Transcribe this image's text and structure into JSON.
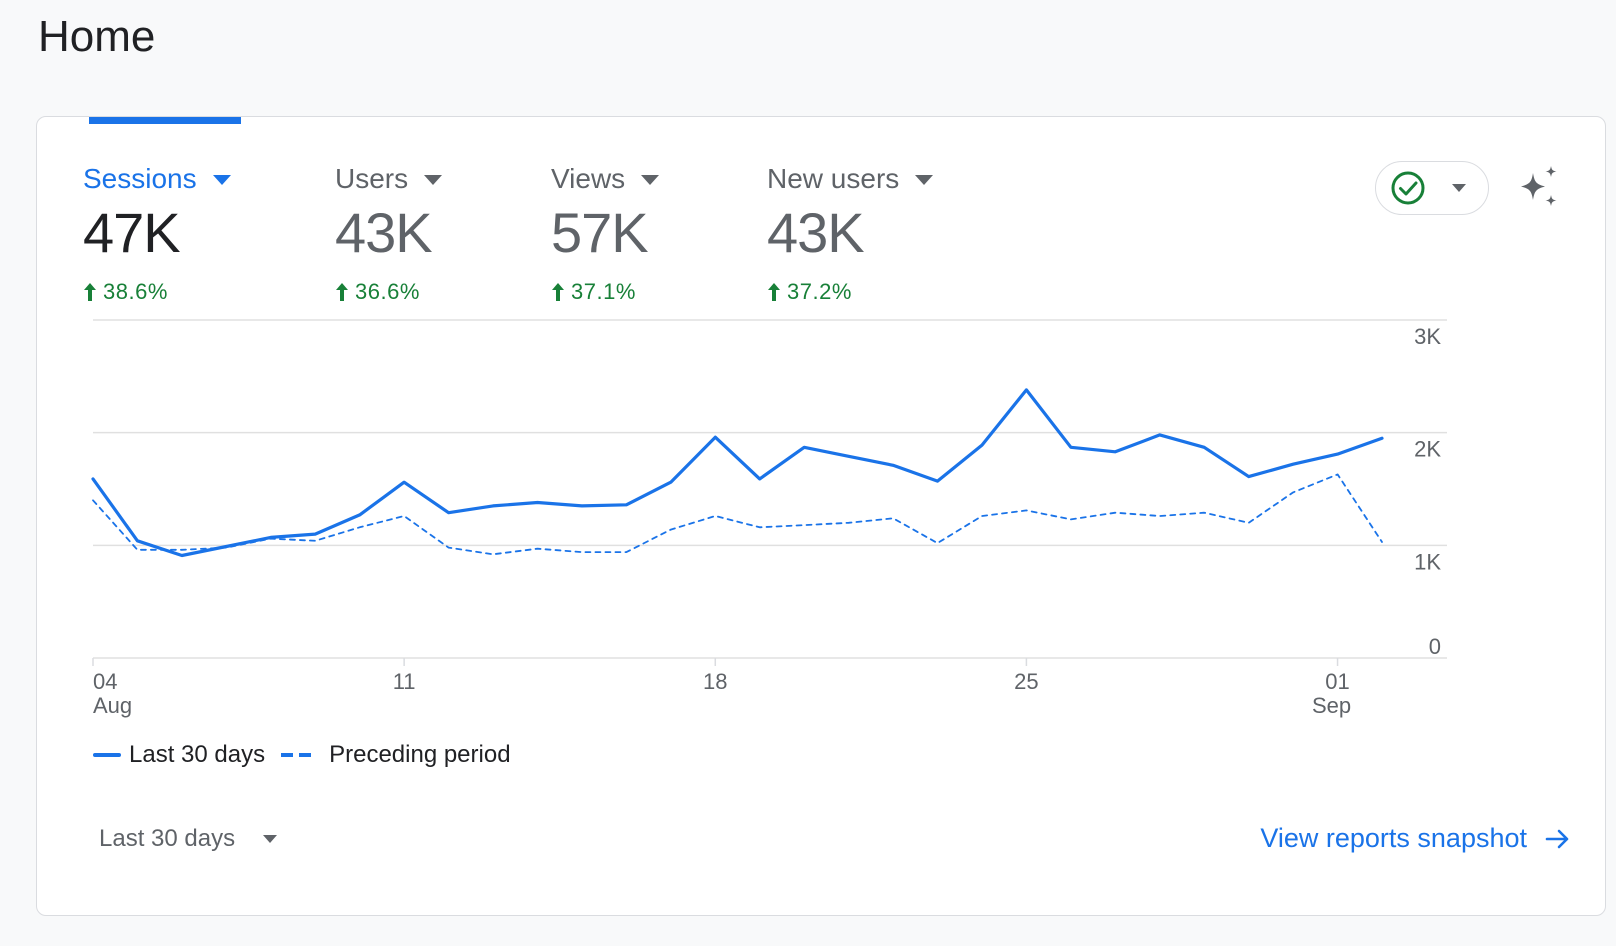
{
  "page": {
    "title": "Home"
  },
  "metrics": [
    {
      "label": "Sessions",
      "value": "47K",
      "delta": "38.6%",
      "active": true
    },
    {
      "label": "Users",
      "value": "43K",
      "delta": "36.6%",
      "active": false
    },
    {
      "label": "Views",
      "value": "57K",
      "delta": "37.1%",
      "active": false
    },
    {
      "label": "New users",
      "value": "43K",
      "delta": "37.2%",
      "active": false
    }
  ],
  "icons": {
    "status": "check-circle-icon",
    "insights": "sparkle-icon",
    "delta": "arrow-up-icon",
    "link": "arrow-right-icon"
  },
  "colors": {
    "accent": "#1a73e8",
    "positive": "#188038",
    "muted": "#5f6368",
    "grid": "#e0e0e0"
  },
  "chart_data": {
    "type": "line",
    "x": [
      4,
      5,
      6,
      7,
      8,
      9,
      10,
      11,
      12,
      13,
      14,
      15,
      16,
      17,
      18,
      19,
      20,
      21,
      22,
      23,
      24,
      25,
      26,
      27,
      28,
      29,
      30,
      31,
      1,
      2
    ],
    "x_tick_labels": [
      {
        "day": "04",
        "month": "Aug"
      },
      {
        "day": "11",
        "month": ""
      },
      {
        "day": "18",
        "month": ""
      },
      {
        "day": "25",
        "month": ""
      },
      {
        "day": "01",
        "month": "Sep"
      }
    ],
    "y_tick_labels": [
      "3K",
      "2K",
      "1K",
      "0"
    ],
    "ylim": [
      0,
      3000
    ],
    "grid": true,
    "series": [
      {
        "name": "Last 30 days",
        "style": "solid",
        "values": [
          1590,
          1040,
          910,
          990,
          1070,
          1100,
          1270,
          1560,
          1290,
          1350,
          1380,
          1350,
          1360,
          1560,
          1960,
          1590,
          1870,
          1790,
          1710,
          1570,
          1890,
          2380,
          1870,
          1830,
          1980,
          1870,
          1610,
          1720,
          1810,
          1950
        ]
      },
      {
        "name": "Preceding period",
        "style": "dashed",
        "values": [
          1400,
          960,
          960,
          980,
          1060,
          1040,
          1160,
          1260,
          980,
          920,
          970,
          940,
          940,
          1140,
          1260,
          1160,
          1180,
          1200,
          1240,
          1020,
          1260,
          1310,
          1230,
          1290,
          1260,
          1290,
          1200,
          1470,
          1630,
          1030
        ]
      }
    ]
  },
  "footer": {
    "range_label": "Last 30 days",
    "link_label": "View reports snapshot"
  }
}
